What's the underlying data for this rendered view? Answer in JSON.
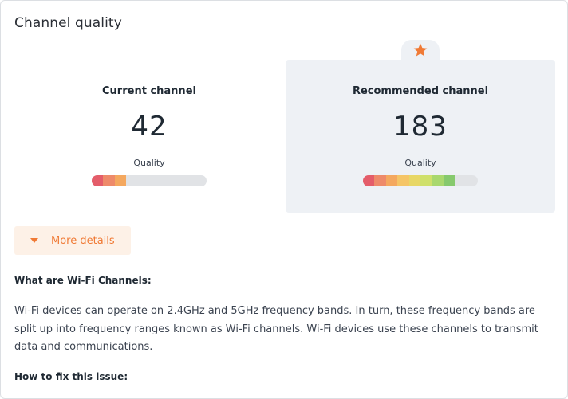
{
  "card": {
    "title": "Channel quality"
  },
  "current": {
    "label": "Current channel",
    "channel": "42",
    "quality_label": "Quality",
    "quality_fraction": 0.3
  },
  "recommended": {
    "label": "Recommended channel",
    "channel": "183",
    "quality_label": "Quality",
    "quality_fraction": 0.8,
    "badge_icon": "star-icon"
  },
  "quality_scale_colors": [
    "#e45d6a",
    "#ee8a6a",
    "#f4a85f",
    "#f5c566",
    "#e8d765",
    "#cfe06b",
    "#a9d86e",
    "#86c96d"
  ],
  "details_toggle": {
    "label": "More details",
    "icon": "caret-down-icon"
  },
  "info": {
    "heading": "What are Wi-Fi Channels:",
    "body": "Wi-Fi devices can operate on 2.4GHz and 5GHz frequency bands. In turn, these frequency bands are split up into frequency ranges known as Wi-Fi channels. Wi-Fi devices use these channels to transmit data and communications.",
    "fix_heading": "How to fix this issue:"
  },
  "colors": {
    "accent": "#f07a35",
    "accent_bg": "#fdf1e7",
    "panel_bg": "#eef1f5",
    "star": "#f07a35"
  }
}
